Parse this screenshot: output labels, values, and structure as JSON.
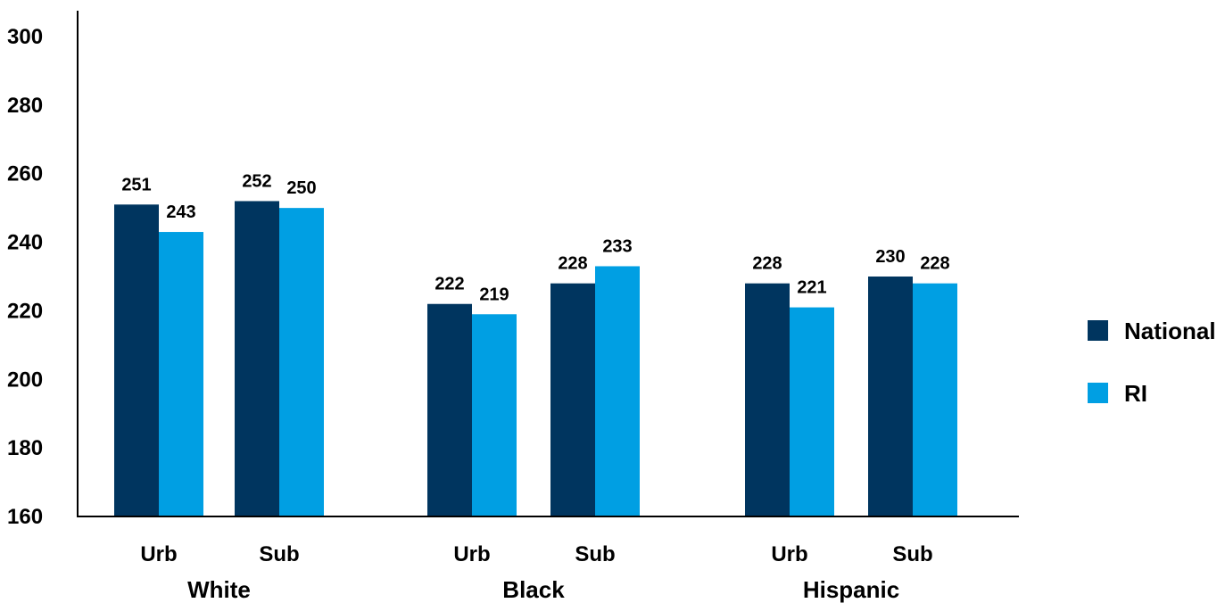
{
  "chart_data": {
    "type": "bar",
    "title": "",
    "xlabel": "",
    "ylabel": "",
    "ylim": [
      160,
      300
    ],
    "yticks": [
      160,
      180,
      200,
      220,
      240,
      260,
      280,
      300
    ],
    "grid": false,
    "legend_position": "right",
    "groups": [
      {
        "label": "White",
        "categories": [
          "Urb",
          "Sub"
        ]
      },
      {
        "label": "Black",
        "categories": [
          "Urb",
          "Sub"
        ]
      },
      {
        "label": "Hispanic",
        "categories": [
          "Urb",
          "Sub"
        ]
      }
    ],
    "categories": [
      "Urb",
      "Sub",
      "Urb",
      "Sub",
      "Urb",
      "Sub"
    ],
    "series": [
      {
        "name": "National",
        "color": "#00355f",
        "values": [
          251,
          252,
          222,
          228,
          228,
          230
        ]
      },
      {
        "name": "RI",
        "color": "#009fe3",
        "values": [
          243,
          250,
          219,
          233,
          221,
          228
        ]
      }
    ]
  }
}
